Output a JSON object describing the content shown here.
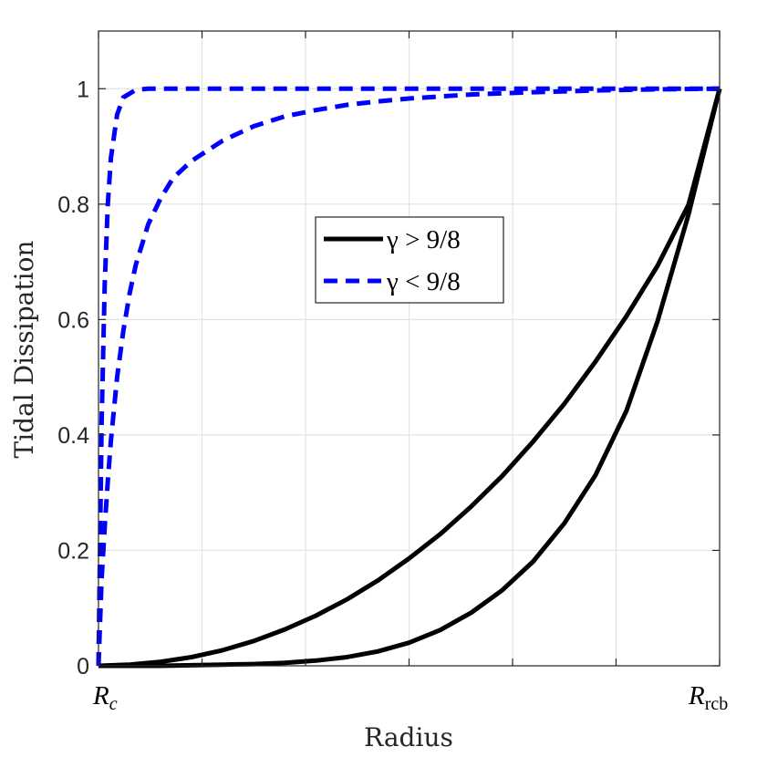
{
  "chart_data": {
    "type": "line",
    "xlabel": "Radius",
    "ylabel": "Tidal Dissipation",
    "xlim": [
      0,
      1
    ],
    "ylim": [
      0,
      1.1
    ],
    "x_tick_labels": [
      {
        "x": 0,
        "main": "R",
        "sub": "c"
      },
      {
        "x": 1,
        "main": "R",
        "sub": "rcb"
      }
    ],
    "x_grid": [
      0,
      0.1667,
      0.3333,
      0.5,
      0.6667,
      0.8333,
      1
    ],
    "y_ticks": [
      0,
      0.2,
      0.4,
      0.6,
      0.8,
      1
    ],
    "y_tick_labels": [
      "0",
      "0.2",
      "0.4",
      "0.6",
      "0.8",
      "1"
    ],
    "grid": true,
    "legend": {
      "placement": "center",
      "entries": [
        {
          "label": "γ > 9/8",
          "style": "solid",
          "color": "#000000"
        },
        {
          "label": "γ < 9/8",
          "style": "dashed",
          "color": "#0000ff"
        }
      ]
    },
    "series": [
      {
        "style": "solid",
        "color": "#000000",
        "x": [
          0,
          0.05,
          0.1,
          0.15,
          0.2,
          0.25,
          0.3,
          0.35,
          0.4,
          0.45,
          0.5,
          0.55,
          0.6,
          0.65,
          0.7,
          0.75,
          0.8,
          0.85,
          0.9,
          0.95,
          1
        ],
        "y": [
          0,
          0.002,
          0.007,
          0.015,
          0.027,
          0.043,
          0.063,
          0.087,
          0.115,
          0.148,
          0.186,
          0.228,
          0.276,
          0.329,
          0.389,
          0.454,
          0.527,
          0.606,
          0.693,
          0.799,
          1
        ]
      },
      {
        "style": "solid",
        "color": "#000000",
        "x": [
          0,
          0.05,
          0.1,
          0.15,
          0.2,
          0.25,
          0.3,
          0.35,
          0.4,
          0.45,
          0.5,
          0.55,
          0.6,
          0.65,
          0.7,
          0.75,
          0.8,
          0.85,
          0.9,
          0.95,
          1
        ],
        "y": [
          0,
          0,
          0,
          0.001,
          0.002,
          0.003,
          0.005,
          0.009,
          0.015,
          0.025,
          0.04,
          0.062,
          0.092,
          0.131,
          0.181,
          0.247,
          0.33,
          0.442,
          0.597,
          0.782,
          1
        ]
      },
      {
        "style": "dashed",
        "color": "#0000ff",
        "x": [
          0,
          0.005,
          0.01,
          0.015,
          0.02,
          0.03,
          0.04,
          0.06,
          0.08,
          0.1,
          0.15,
          0.2,
          0.3,
          0.5,
          0.7,
          1
        ],
        "y": [
          0,
          0.42,
          0.66,
          0.8,
          0.88,
          0.955,
          0.985,
          0.998,
          1,
          1,
          1,
          1,
          1,
          1,
          1,
          1
        ]
      },
      {
        "style": "dashed",
        "color": "#0000ff",
        "x": [
          0,
          0.005,
          0.01,
          0.015,
          0.02,
          0.03,
          0.04,
          0.05,
          0.06,
          0.08,
          0.1,
          0.12,
          0.15,
          0.2,
          0.25,
          0.3,
          0.35,
          0.4,
          0.45,
          0.5,
          0.6,
          0.7,
          0.8,
          0.9,
          1
        ],
        "y": [
          0,
          0.15,
          0.24,
          0.32,
          0.39,
          0.5,
          0.58,
          0.645,
          0.695,
          0.765,
          0.81,
          0.845,
          0.875,
          0.91,
          0.935,
          0.952,
          0.963,
          0.972,
          0.978,
          0.983,
          0.99,
          0.994,
          0.997,
          0.999,
          1
        ]
      }
    ]
  }
}
